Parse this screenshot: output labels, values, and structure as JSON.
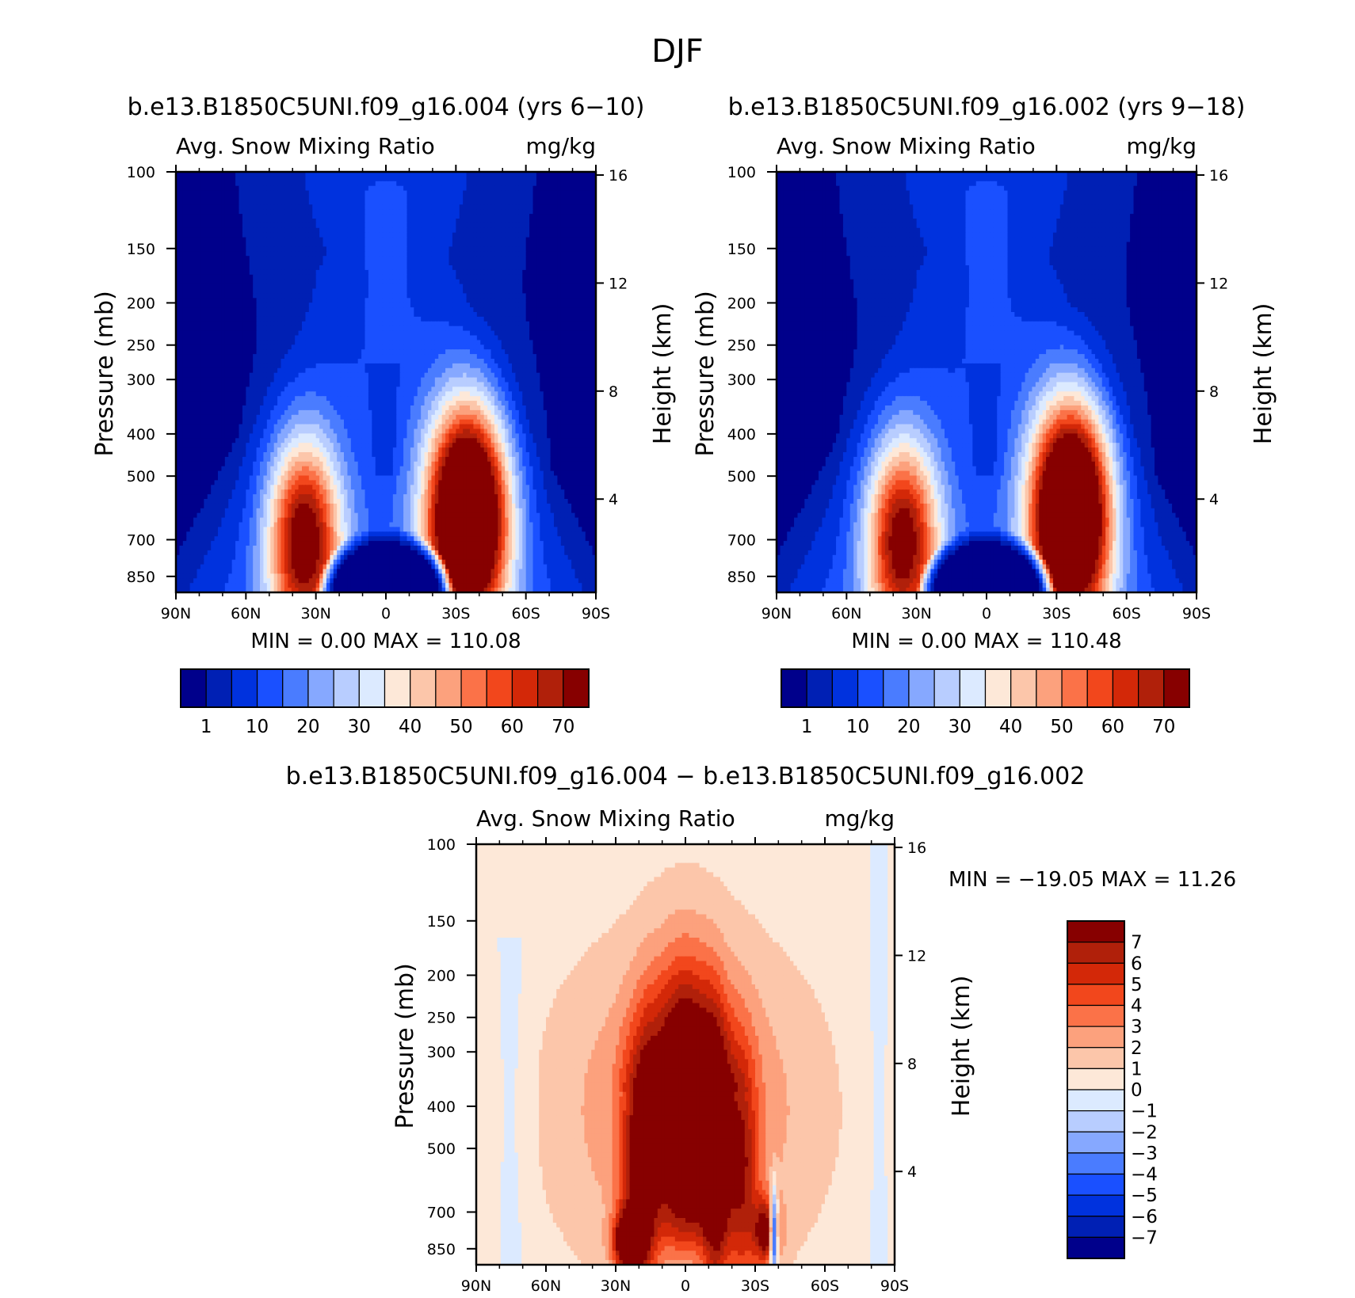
{
  "title": "DJF",
  "chart_data": [
    {
      "type": "heatmap",
      "title": "b.e13.B1850C5UNI.f09_g16.004 (yrs 6−10)",
      "subtitle_left": "Avg. Snow Mixing Ratio",
      "subtitle_right": "mg/kg",
      "ylabel": "Pressure (mb)",
      "y2label": "Height (km)",
      "x_ticks": [
        "90N",
        "60N",
        "30N",
        "0",
        "30S",
        "60S",
        "90S"
      ],
      "y_ticks": [
        "100",
        "150",
        "200",
        "250",
        "300",
        "400",
        "500",
        "700",
        "850"
      ],
      "y2_ticks": [
        "16",
        "12",
        "8",
        "4"
      ],
      "stats": "MIN =     0.00   MAX =  110.08",
      "colorbar_labels": [
        "1",
        "10",
        "20",
        "30",
        "40",
        "50",
        "60",
        "70"
      ],
      "field": {
        "max_nh_lat": -35,
        "max_nh_p": 700,
        "max_nh_val": 68,
        "max_sh_lat": 35,
        "max_sh_p": 620,
        "max_sh_val": 110
      }
    },
    {
      "type": "heatmap",
      "title": "b.e13.B1850C5UNI.f09_g16.002 (yrs 9−18)",
      "subtitle_left": "Avg. Snow Mixing Ratio",
      "subtitle_right": "mg/kg",
      "ylabel": "Pressure (mb)",
      "y2label": "Height (km)",
      "x_ticks": [
        "90N",
        "60N",
        "30N",
        "0",
        "30S",
        "60S",
        "90S"
      ],
      "y_ticks": [
        "100",
        "150",
        "200",
        "250",
        "300",
        "400",
        "500",
        "700",
        "850"
      ],
      "y2_ticks": [
        "16",
        "12",
        "8",
        "4"
      ],
      "stats": "MIN =     0.00   MAX =  110.48",
      "colorbar_labels": [
        "1",
        "10",
        "20",
        "30",
        "40",
        "50",
        "60",
        "70"
      ],
      "field": {
        "max_nh_lat": -36,
        "max_nh_p": 700,
        "max_nh_val": 66,
        "max_sh_lat": 36,
        "max_sh_p": 610,
        "max_sh_val": 110
      }
    },
    {
      "type": "heatmap",
      "title": "b.e13.B1850C5UNI.f09_g16.004 − b.e13.B1850C5UNI.f09_g16.002",
      "subtitle_left": "Avg. Snow Mixing Ratio",
      "subtitle_right": "mg/kg",
      "ylabel": "Pressure (mb)",
      "y2label": "Height (km)",
      "x_ticks": [
        "90N",
        "60N",
        "30N",
        "0",
        "30S",
        "60S",
        "90S"
      ],
      "y_ticks": [
        "100",
        "150",
        "200",
        "250",
        "300",
        "400",
        "500",
        "700",
        "850"
      ],
      "y2_ticks": [
        "16",
        "12",
        "8",
        "4"
      ],
      "stats": "MIN = −19.05   MAX =   11.26",
      "colorbar_labels": [
        "7",
        "6",
        "5",
        "4",
        "3",
        "2",
        "1",
        "0",
        "−1",
        "−2",
        "−3",
        "−4",
        "−5",
        "−6",
        "−7"
      ]
    }
  ],
  "colors": {
    "seq": [
      "#00008b",
      "#0020b4",
      "#0032de",
      "#1a50ff",
      "#4a7cff",
      "#86a8ff",
      "#b8cdff",
      "#dceaff",
      "#fde8d8",
      "#fcc6aa",
      "#fca17d",
      "#fb7248",
      "#f2471c",
      "#d32808",
      "#b0200a",
      "#870000"
    ],
    "diff": [
      "#870000",
      "#b0200a",
      "#d32808",
      "#f2471c",
      "#fb7248",
      "#fca17d",
      "#fcc6aa",
      "#fde8d8",
      "#dceaff",
      "#b8cdff",
      "#86a8ff",
      "#4a7cff",
      "#1a50ff",
      "#0032de",
      "#0020b4",
      "#00008b"
    ]
  }
}
